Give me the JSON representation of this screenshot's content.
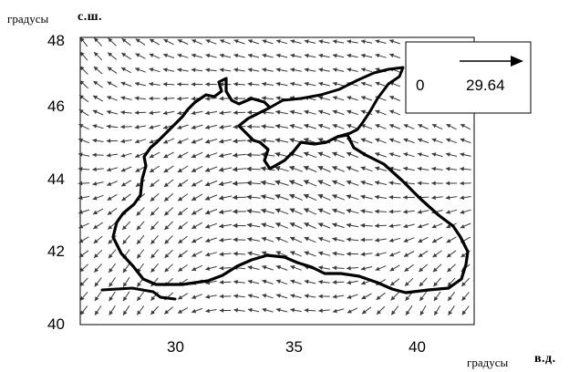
{
  "y_axis": {
    "unit_label": "градусы",
    "direction_label": "с.ш.",
    "ticks": [
      "48",
      "46",
      "44",
      "42",
      "40"
    ]
  },
  "x_axis": {
    "unit_label": "градусы",
    "direction_label": "в.д.",
    "ticks": [
      "30",
      "35",
      "40"
    ]
  },
  "legend": {
    "min_label": "0",
    "max_label": "29.64"
  },
  "colors": {
    "background": "#ffffff",
    "coastline": "#000000",
    "arrows": "#3a3a3a"
  },
  "chart_data": {
    "type": "vector field",
    "xlim": [
      26.5,
      42.5
    ],
    "ylim": [
      40,
      48
    ],
    "x_ticks": [
      30,
      35,
      40
    ],
    "y_ticks": [
      40,
      42,
      44,
      46,
      48
    ],
    "reference_vector": {
      "magnitude_range": [
        0,
        29.64
      ]
    },
    "grid": false,
    "legend_position": "top-right"
  }
}
